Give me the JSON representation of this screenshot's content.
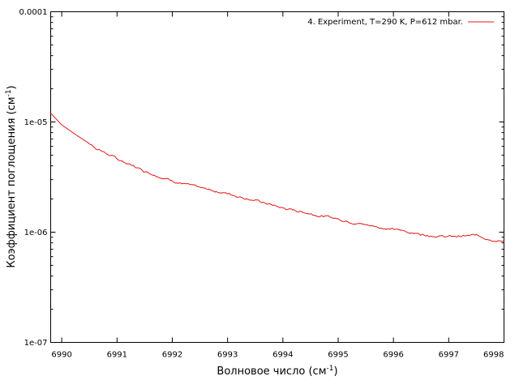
{
  "chart_data": {
    "type": "line",
    "xlabel": "Волновое число (см",
    "xlabel_sup": "-1",
    "xlabel_end": ")",
    "ylabel": "Коэффициент поглощения (см",
    "ylabel_sup": "-1",
    "ylabel_end": ")",
    "xlim": [
      6989.8,
      6998
    ],
    "ylim": [
      1e-07,
      0.0001
    ],
    "y_scale": "log",
    "x_ticks": [
      "6990",
      "6991",
      "6992",
      "6993",
      "6994",
      "6995",
      "6996",
      "6997",
      "6998"
    ],
    "y_ticks": [
      "1e-07",
      "1e-06",
      "1e-05",
      "0.0001"
    ],
    "grid": false,
    "legend_position": "top-right",
    "series": [
      {
        "name": "4. Experiment, T=290 K, P=612 mbar.",
        "color": "#e41a1c",
        "x": [
          6989.8,
          6990.0,
          6990.3,
          6990.6,
          6991.0,
          6991.5,
          6992.0,
          6992.5,
          6993.0,
          6993.5,
          6994.0,
          6994.5,
          6995.0,
          6995.5,
          6996.0,
          6996.5,
          6997.0,
          6997.5,
          6998.0
        ],
        "y": [
          1.2e-05,
          9.4e-06,
          7.4e-06,
          5.9e-06,
          4.6e-06,
          3.6e-06,
          2.95e-06,
          2.5e-06,
          2.25e-06,
          1.95e-06,
          1.65e-06,
          1.48e-06,
          1.32e-06,
          1.17e-06,
          1.06e-06,
          9.6e-07,
          9.1e-07,
          9.3e-07,
          8.2e-07
        ]
      }
    ]
  }
}
